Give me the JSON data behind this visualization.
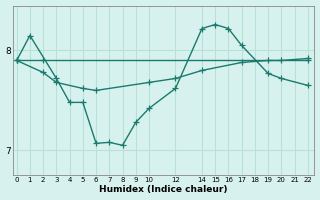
{
  "xlabel": "Humidex (Indice chaleur)",
  "bg_color": "#d7f2ee",
  "line_color": "#1a7a6e",
  "grid_color": "#b8e0d8",
  "series1_x": [
    0,
    1,
    3,
    4,
    5,
    6,
    7,
    8,
    9,
    10,
    12,
    14,
    15,
    16,
    17,
    19,
    20,
    22
  ],
  "series1_y": [
    7.9,
    8.15,
    7.72,
    7.48,
    7.48,
    7.07,
    7.08,
    7.05,
    7.28,
    7.42,
    7.62,
    8.22,
    8.26,
    8.22,
    8.05,
    7.77,
    7.72,
    7.65
  ],
  "series2_x": [
    0,
    2,
    3,
    5,
    6,
    10,
    12,
    14,
    17,
    19,
    20,
    22
  ],
  "series2_y": [
    7.9,
    7.78,
    7.68,
    7.62,
    7.6,
    7.68,
    7.72,
    7.8,
    7.88,
    7.9,
    7.9,
    7.92
  ],
  "series3_x": [
    0,
    2,
    22
  ],
  "series3_y": [
    7.9,
    7.9,
    7.9
  ],
  "ylim": [
    6.75,
    8.45
  ],
  "xlim": [
    -0.3,
    22.5
  ],
  "yticks": [
    7,
    8
  ],
  "xticks": [
    0,
    1,
    2,
    3,
    4,
    5,
    6,
    7,
    8,
    9,
    10,
    12,
    14,
    15,
    16,
    17,
    18,
    19,
    20,
    21,
    22
  ],
  "marker": "+",
  "markersize": 4,
  "linewidth": 1.0
}
